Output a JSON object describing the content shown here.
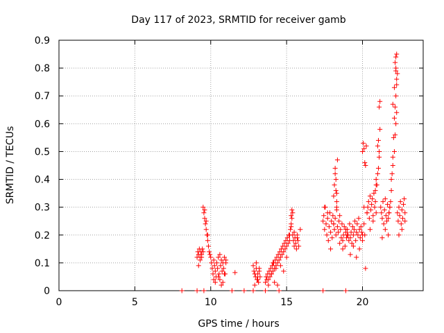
{
  "chart_data": {
    "type": "scatter",
    "title": "Day 117 of 2023, SRMTID for receiver gamb",
    "xlabel": "GPS time / hours",
    "ylabel": "SRMTID / TECUs",
    "xlim": [
      0,
      24
    ],
    "ylim": [
      0,
      0.9
    ],
    "xticks": [
      0,
      5,
      10,
      15,
      20
    ],
    "xtick_labels": [
      "0",
      "5",
      "10",
      "15",
      "20"
    ],
    "yticks": [
      0,
      0.1,
      0.2,
      0.3,
      0.4,
      0.5,
      0.6,
      0.7,
      0.8,
      0.9
    ],
    "ytick_labels": [
      "0",
      "0.1",
      "0.2",
      "0.3",
      "0.4",
      "0.5",
      "0.6",
      "0.7",
      "0.8",
      "0.9"
    ],
    "grid": true,
    "marker": "+",
    "color": "#ff0000",
    "series": [
      {
        "name": "SRMTID",
        "x": [
          8.1,
          9.1,
          9.55,
          11.4,
          12.2,
          12.8,
          13.6,
          14.5,
          17.4,
          18.9,
          9.1,
          9.15,
          9.2,
          9.25,
          9.3,
          9.35,
          9.4,
          9.45,
          9.5,
          9.2,
          9.3,
          9.4,
          9.5,
          9.55,
          9.6,
          9.65,
          9.7,
          9.75,
          9.8,
          9.85,
          9.9,
          9.95,
          10.0,
          9.6,
          9.7,
          9.8,
          10.05,
          10.1,
          10.15,
          10.2,
          10.25,
          10.3,
          10.35,
          10.4,
          10.45,
          10.5,
          10.55,
          10.6,
          10.65,
          10.7,
          10.75,
          10.8,
          10.85,
          10.9,
          10.95,
          11.0,
          10.3,
          10.5,
          10.7,
          10.9,
          10.2,
          10.6,
          10.8,
          11.0,
          11.6,
          12.8,
          12.85,
          12.9,
          12.95,
          13.0,
          13.05,
          13.1,
          13.15,
          13.2,
          13.25,
          12.9,
          13.0,
          13.1,
          13.2,
          13.6,
          13.65,
          13.7,
          13.75,
          13.8,
          13.85,
          13.9,
          13.95,
          14.0,
          14.05,
          14.1,
          14.15,
          14.2,
          14.25,
          14.3,
          14.35,
          14.4,
          14.45,
          14.5,
          14.55,
          14.6,
          14.65,
          14.7,
          14.75,
          14.8,
          14.85,
          14.9,
          14.95,
          15.0,
          15.05,
          15.1,
          15.15,
          15.2,
          13.8,
          14.0,
          14.2,
          14.4,
          14.6,
          14.8,
          15.0,
          14.1,
          14.3,
          15.2,
          15.25,
          15.3,
          15.35,
          15.4,
          15.45,
          15.5,
          15.55,
          15.6,
          15.65,
          15.7,
          15.75,
          15.8,
          15.3,
          15.35,
          15.4,
          15.3,
          15.5,
          15.7,
          15.9,
          17.4,
          17.45,
          17.5,
          17.55,
          17.6,
          17.65,
          17.7,
          17.75,
          17.8,
          17.85,
          17.9,
          17.95,
          18.0,
          18.05,
          18.1,
          18.15,
          18.2,
          18.25,
          18.3,
          18.35,
          18.4,
          18.45,
          18.5,
          18.55,
          18.6,
          18.65,
          18.7,
          18.75,
          18.8,
          18.85,
          18.9,
          18.95,
          19.0,
          17.5,
          17.7,
          17.9,
          18.1,
          18.3,
          18.5,
          18.7,
          18.9,
          18.1,
          18.15,
          18.2,
          18.25,
          18.3,
          18.35,
          18.2,
          18.25,
          18.3,
          19.0,
          19.05,
          19.1,
          19.15,
          19.2,
          19.25,
          19.3,
          19.35,
          19.4,
          19.45,
          19.5,
          19.55,
          19.6,
          19.65,
          19.7,
          19.75,
          19.8,
          19.85,
          19.9,
          19.95,
          20.0,
          19.2,
          19.4,
          19.6,
          19.8,
          20.0,
          20.05,
          20.1,
          20.15,
          20.2,
          20.25,
          20.1,
          20.1,
          20.15,
          20.2,
          20.0,
          20.3,
          20.3,
          20.35,
          20.4,
          20.45,
          20.5,
          20.55,
          20.6,
          20.65,
          20.7,
          20.75,
          20.8,
          20.85,
          20.9,
          20.5,
          20.7,
          20.9,
          20.85,
          20.9,
          20.95,
          21.0,
          21.05,
          21.1,
          21.0,
          21.05,
          21.1,
          21.15,
          21.1,
          21.15,
          21.2,
          21.25,
          21.3,
          21.35,
          21.4,
          21.45,
          21.5,
          21.55,
          21.6,
          21.65,
          21.7,
          21.75,
          21.8,
          21.3,
          21.5,
          21.7,
          21.75,
          21.8,
          21.85,
          21.9,
          21.95,
          22.0,
          22.05,
          22.1,
          22.15,
          22.2,
          22.25,
          22.3,
          21.9,
          22.0,
          22.1,
          22.15,
          22.2,
          22.25,
          22.0,
          22.1,
          22.2,
          22.15,
          22.2,
          22.25,
          22.2,
          22.25,
          22.3,
          22.35,
          22.4,
          22.45,
          22.5,
          22.55,
          22.6,
          22.65,
          22.7,
          22.75,
          22.8,
          22.4,
          22.6,
          22.8
        ],
        "y": [
          0,
          0,
          0,
          0,
          0,
          0,
          0,
          0,
          0,
          0,
          0.12,
          0.14,
          0.13,
          0.15,
          0.12,
          0.14,
          0.13,
          0.15,
          0.14,
          0.09,
          0.11,
          0.12,
          0.3,
          0.28,
          0.26,
          0.24,
          0.22,
          0.2,
          0.18,
          0.16,
          0.14,
          0.13,
          0.12,
          0.29,
          0.25,
          0.2,
          0.1,
          0.08,
          0.06,
          0.11,
          0.09,
          0.07,
          0.05,
          0.1,
          0.08,
          0.12,
          0.06,
          0.04,
          0.09,
          0.11,
          0.07,
          0.1,
          0.08,
          0.12,
          0.06,
          0.1,
          0.03,
          0.05,
          0.02,
          0.06,
          0.04,
          0.13,
          0.03,
          0.11,
          0.065,
          0.09,
          0.07,
          0.06,
          0.05,
          0.08,
          0.04,
          0.06,
          0.03,
          0.07,
          0.05,
          0.02,
          0.1,
          0.04,
          0.08,
          0.03,
          0.05,
          0.04,
          0.06,
          0.02,
          0.07,
          0.05,
          0.08,
          0.06,
          0.09,
          0.07,
          0.1,
          0.08,
          0.11,
          0.09,
          0.12,
          0.1,
          0.13,
          0.11,
          0.14,
          0.12,
          0.15,
          0.13,
          0.16,
          0.14,
          0.17,
          0.15,
          0.18,
          0.16,
          0.19,
          0.17,
          0.2,
          0.18,
          0.04,
          0.06,
          0.03,
          0.02,
          0.09,
          0.07,
          0.12,
          0.1,
          0.08,
          0.2,
          0.22,
          0.24,
          0.26,
          0.2,
          0.18,
          0.16,
          0.19,
          0.17,
          0.15,
          0.2,
          0.18,
          0.16,
          0.27,
          0.29,
          0.28,
          0.23,
          0.21,
          0.19,
          0.22,
          0.25,
          0.27,
          0.22,
          0.3,
          0.24,
          0.2,
          0.26,
          0.18,
          0.23,
          0.28,
          0.21,
          0.25,
          0.19,
          0.27,
          0.24,
          0.22,
          0.26,
          0.2,
          0.29,
          0.23,
          0.21,
          0.25,
          0.17,
          0.22,
          0.19,
          0.24,
          0.18,
          0.2,
          0.23,
          0.16,
          0.21,
          0.19,
          0.2,
          0.3,
          0.28,
          0.15,
          0.24,
          0.3,
          0.27,
          0.15,
          0.22,
          0.34,
          0.38,
          0.42,
          0.36,
          0.32,
          0.47,
          0.44,
          0.4,
          0.35,
          0.22,
          0.2,
          0.18,
          0.24,
          0.19,
          0.21,
          0.17,
          0.23,
          0.2,
          0.22,
          0.25,
          0.18,
          0.21,
          0.24,
          0.2,
          0.26,
          0.22,
          0.19,
          0.23,
          0.21,
          0.2,
          0.13,
          0.16,
          0.12,
          0.15,
          0.5,
          0.53,
          0.51,
          0.46,
          0.45,
          0.52,
          0.3,
          0.24,
          0.2,
          0.08,
          0.18,
          0.28,
          0.28,
          0.3,
          0.32,
          0.26,
          0.34,
          0.29,
          0.31,
          0.33,
          0.27,
          0.35,
          0.3,
          0.32,
          0.28,
          0.22,
          0.25,
          0.38,
          0.36,
          0.4,
          0.38,
          0.42,
          0.44,
          0.5,
          0.52,
          0.54,
          0.48,
          0.58,
          0.66,
          0.68,
          0.3,
          0.28,
          0.26,
          0.32,
          0.24,
          0.29,
          0.22,
          0.27,
          0.25,
          0.31,
          0.2,
          0.28,
          0.3,
          0.19,
          0.33,
          0.26,
          0.28,
          0.3,
          0.32,
          0.36,
          0.42,
          0.48,
          0.55,
          0.62,
          0.66,
          0.7,
          0.74,
          0.78,
          0.4,
          0.45,
          0.5,
          0.56,
          0.6,
          0.64,
          0.67,
          0.73,
          0.79,
          0.82,
          0.84,
          0.85,
          0.8,
          0.76,
          0.28,
          0.25,
          0.3,
          0.27,
          0.32,
          0.24,
          0.29,
          0.26,
          0.31,
          0.33,
          0.28,
          0.2,
          0.22,
          0.25
        ]
      }
    ]
  }
}
